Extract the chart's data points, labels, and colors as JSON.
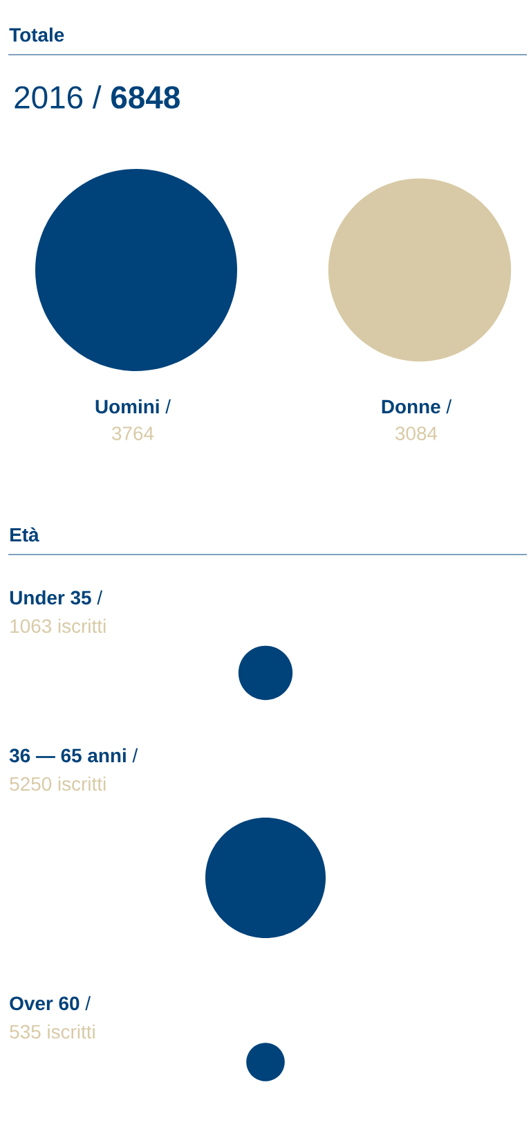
{
  "chart_data": [
    {
      "type": "other",
      "title": "Totale",
      "subtitle": "2016 / **6848**",
      "categories": [
        "**Uomini** /",
        "**Donne** /"
      ],
      "values": [
        3764,
        3084
      ],
      "value_labels": [
        "3764",
        "3084"
      ],
      "colors": [
        "#00427a",
        "#d8caa6"
      ]
    },
    {
      "type": "other",
      "title": "Età",
      "categories": [
        "**Under 35** /",
        "**36 — 65 anni** /",
        "**Over 60** /"
      ],
      "values": [
        1063,
        5250,
        535
      ],
      "value_labels": [
        "1063 iscritti",
        "5250 iscritti",
        "535 iscritti"
      ],
      "colors": [
        "#00427a",
        "#00427a",
        "#00427a"
      ]
    }
  ]
}
